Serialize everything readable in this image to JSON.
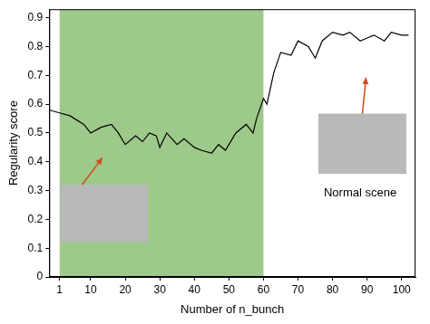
{
  "chart_data": {
    "type": "line",
    "x_label": "Number of n_bunch",
    "y_label": "Regularity score",
    "x": [
      -2,
      1,
      4,
      8,
      10,
      13,
      16,
      18,
      20,
      23,
      25,
      27,
      29,
      30,
      32,
      35,
      37,
      40,
      42,
      45,
      47,
      49,
      52,
      55,
      57,
      58,
      60,
      61,
      63,
      65,
      68,
      70,
      73,
      75,
      77,
      80,
      83,
      85,
      88,
      90,
      92,
      95,
      97,
      100,
      102
    ],
    "values": [
      0.58,
      0.57,
      0.56,
      0.53,
      0.5,
      0.52,
      0.53,
      0.5,
      0.46,
      0.49,
      0.47,
      0.5,
      0.49,
      0.45,
      0.5,
      0.46,
      0.48,
      0.45,
      0.44,
      0.43,
      0.46,
      0.44,
      0.5,
      0.53,
      0.5,
      0.55,
      0.62,
      0.6,
      0.71,
      0.78,
      0.77,
      0.82,
      0.8,
      0.76,
      0.82,
      0.85,
      0.84,
      0.85,
      0.82,
      0.83,
      0.84,
      0.82,
      0.85,
      0.84,
      0.84
    ],
    "color": "#000000",
    "xlim": [
      -2,
      104
    ],
    "xticks": [
      1,
      10,
      20,
      30,
      40,
      50,
      60,
      70,
      80,
      90,
      100
    ],
    "ylim": [
      0,
      0.93
    ],
    "yticks": [
      0,
      0.1,
      0.2,
      0.3,
      0.4,
      0.5,
      0.6,
      0.7,
      0.8,
      0.9
    ],
    "grid": false,
    "highlight": {
      "from": 1,
      "to": 60,
      "color": "#9dc98a"
    },
    "annotations": [
      {
        "text": "Normal scene",
        "x": 88,
        "y": 0.29
      }
    ]
  }
}
